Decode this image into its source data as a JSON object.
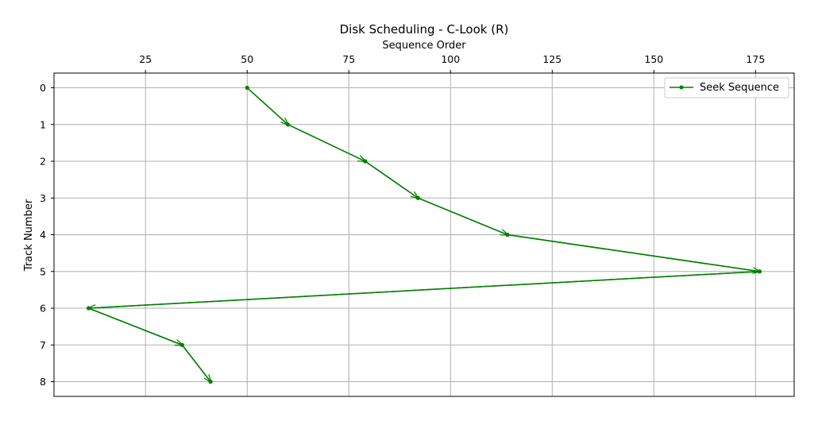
{
  "chart_data": {
    "type": "line",
    "title": "Disk Scheduling - C-Look (R)",
    "xlabel": "Sequence Order",
    "ylabel": "Track Number",
    "x_axis_position": "top",
    "y_inverted": true,
    "xlim": [
      2.5,
      184.5
    ],
    "ylim": [
      8.4,
      -0.4
    ],
    "xticks": [
      25,
      50,
      75,
      100,
      125,
      150,
      175
    ],
    "yticks": [
      0,
      1,
      2,
      3,
      4,
      5,
      6,
      7,
      8
    ],
    "grid": true,
    "legend_position": "top-right",
    "series": [
      {
        "name": "Seek Sequence",
        "color": "#008000",
        "marker": "circle",
        "arrows": true,
        "x": [
          50,
          60,
          79,
          92,
          114,
          176,
          11,
          34,
          41
        ],
        "y": [
          0,
          1,
          2,
          3,
          4,
          5,
          6,
          7,
          8
        ]
      }
    ]
  }
}
